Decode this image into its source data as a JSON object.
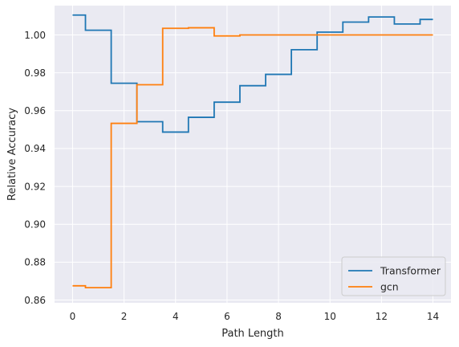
{
  "chart_data": {
    "type": "line",
    "drawstyle": "steps-mid",
    "xlabel": "Path Length",
    "ylabel": "Relative Accuracy",
    "xlim": [
      -0.7,
      14.7
    ],
    "ylim": [
      0.8585,
      1.0155
    ],
    "xticks": [
      0,
      2,
      4,
      6,
      8,
      10,
      12,
      14
    ],
    "xtick_labels": [
      "0",
      "2",
      "4",
      "6",
      "8",
      "10",
      "12",
      "14"
    ],
    "yticks": [
      0.86,
      0.88,
      0.9,
      0.92,
      0.94,
      0.96,
      0.98,
      1.0
    ],
    "ytick_labels": [
      "0.86",
      "0.88",
      "0.90",
      "0.92",
      "0.94",
      "0.96",
      "0.98",
      "1.00"
    ],
    "grid": true,
    "background": "#eaeaf2",
    "legend_position": "lower-right",
    "x": [
      0,
      1,
      2,
      3,
      4,
      5,
      6,
      7,
      8,
      9,
      10,
      11,
      12,
      13,
      14
    ],
    "series": [
      {
        "name": "Transformer",
        "color": "#1f77b4",
        "values": [
          1.0105,
          1.0025,
          0.9745,
          0.9542,
          0.9487,
          0.9565,
          0.9645,
          0.9732,
          0.9792,
          0.9922,
          1.0015,
          1.0068,
          1.0095,
          1.0058,
          1.0082
        ]
      },
      {
        "name": "gcn",
        "color": "#ff7f0e",
        "values": [
          0.8675,
          0.8665,
          0.9533,
          0.9737,
          1.0035,
          1.0038,
          0.9995,
          1.0,
          1.0,
          1.0,
          1.0,
          1.0,
          1.0,
          1.0,
          1.0
        ]
      }
    ]
  }
}
